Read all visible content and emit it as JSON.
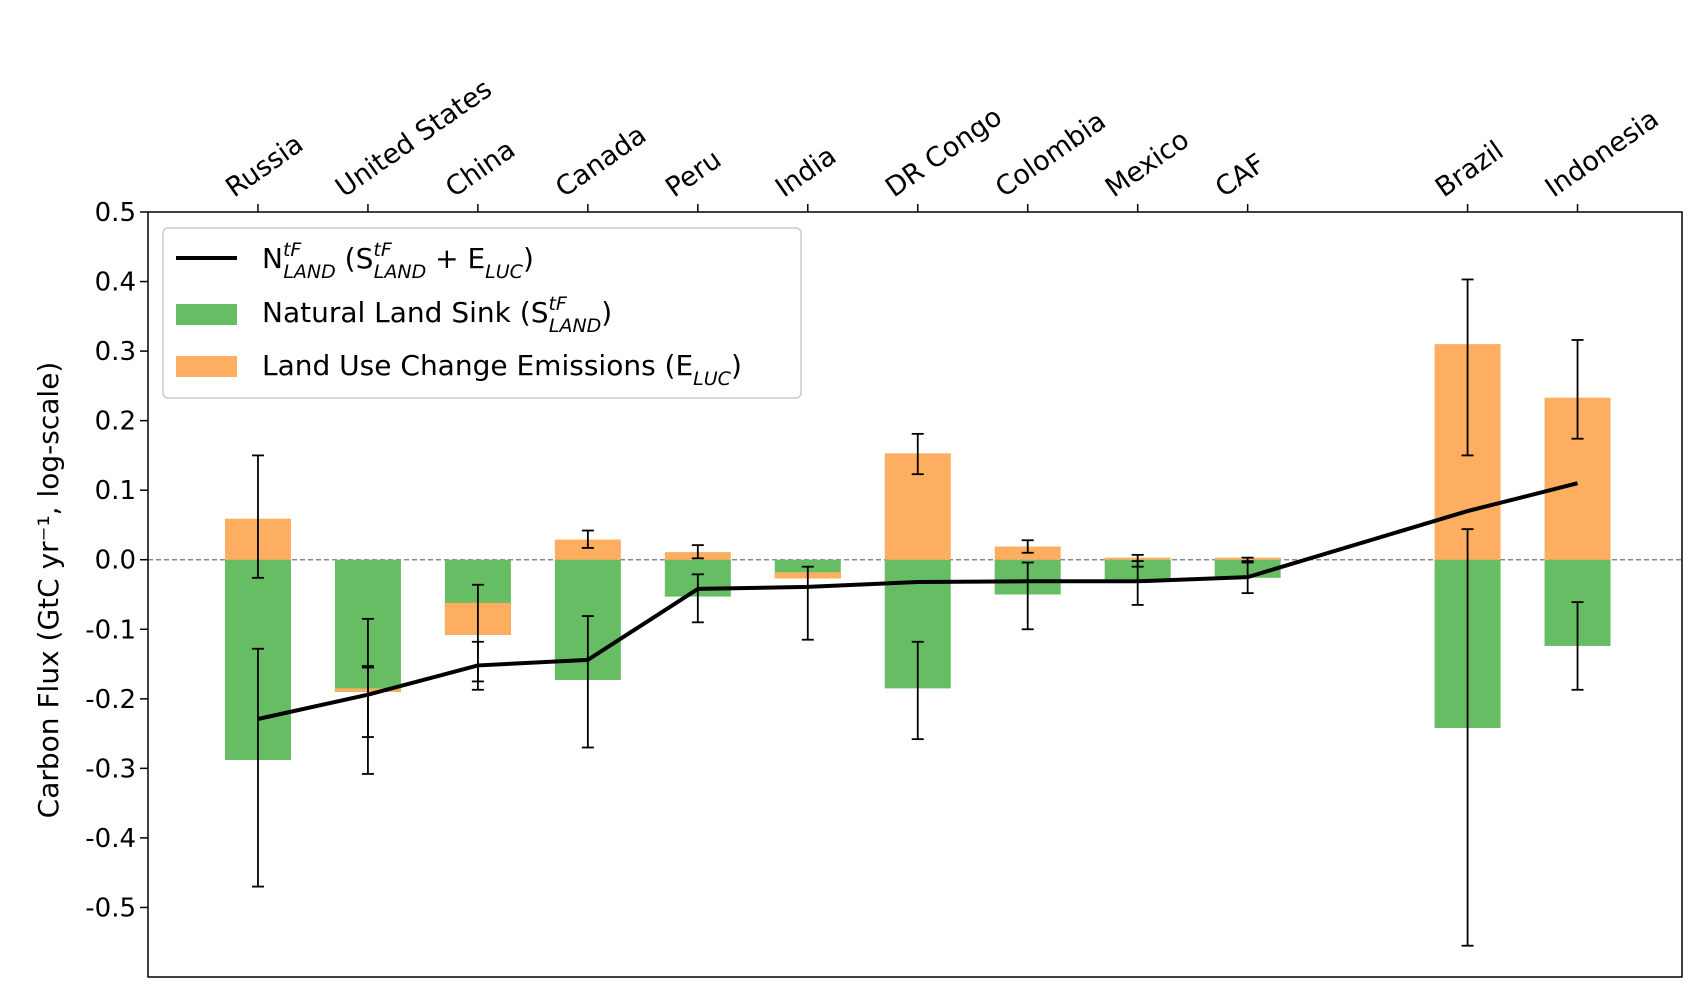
{
  "chart_data": {
    "type": "bar",
    "ylabel": "Carbon Flux (GtC yr⁻¹, log-scale)",
    "ylim": [
      -0.6,
      0.5
    ],
    "yticks": [
      "0.5",
      "0.4",
      "0.3",
      "0.2",
      "0.1",
      "0.0",
      "-0.1",
      "-0.2",
      "-0.3",
      "-0.4",
      "-0.5"
    ],
    "ytick_values": [
      0.5,
      0.4,
      0.3,
      0.2,
      0.1,
      0.0,
      -0.1,
      -0.2,
      -0.3,
      -0.4,
      -0.5
    ],
    "xaxis_position": "top",
    "legend_position": "top-left",
    "reference_line": 0.0,
    "categories": [
      "Russia",
      "United States",
      "China",
      "Canada",
      "Peru",
      "India",
      "DR Congo",
      "Colombia",
      "Mexico",
      "CAF",
      "Brazil",
      "Indonesia"
    ],
    "x": [
      1,
      2,
      3,
      4,
      5,
      6,
      7,
      8,
      9,
      10,
      12,
      13
    ],
    "series": [
      {
        "name": "Natural Land Sink (S tF LAND)",
        "kind": "bar",
        "color": "#66bd63",
        "values": [
          -0.288,
          -0.19,
          -0.108,
          -0.173,
          -0.053,
          -0.027,
          -0.185,
          -0.05,
          -0.028,
          -0.026,
          -0.242,
          -0.124
        ],
        "error_low": [
          -0.47,
          -0.308,
          -0.187,
          -0.27,
          -0.09,
          -0.115,
          -0.258,
          -0.1,
          -0.065,
          -0.048,
          -0.555,
          -0.187
        ],
        "error_high": [
          -0.128,
          -0.085,
          -0.036,
          -0.081,
          -0.021,
          -0.01,
          -0.118,
          -0.004,
          -0.002,
          -0.004,
          0.044,
          -0.061
        ]
      },
      {
        "name": "Land Use Change Emissions (E LUC)",
        "kind": "bar",
        "color": "#fdae61",
        "bottoms": [
          0.0,
          -0.19,
          -0.108,
          0.0,
          0.0,
          -0.027,
          0.0,
          0.0,
          0.0,
          0.0,
          0.0,
          0.0
        ],
        "values": [
          0.059,
          0.005,
          0.046,
          0.029,
          0.011,
          0.009,
          0.153,
          0.019,
          0.003,
          0.003,
          0.31,
          0.233
        ],
        "error_low": [
          -0.026,
          -0.153,
          -0.118,
          0.017,
          0.002,
          null,
          0.123,
          0.01,
          -0.01,
          -0.002,
          0.15,
          0.174
        ],
        "error_high": [
          0.15,
          -0.153,
          -0.175,
          0.042,
          0.021,
          null,
          0.181,
          0.028,
          0.007,
          0.003,
          0.403,
          0.316
        ]
      },
      {
        "name": "N tF LAND (S tF LAND + E LUC)",
        "kind": "line",
        "color": "#000000",
        "values": [
          -0.229,
          -0.194,
          -0.152,
          -0.144,
          -0.042,
          -0.039,
          -0.032,
          -0.031,
          -0.031,
          -0.025,
          0.07,
          0.11
        ],
        "error_low": [
          null,
          -0.255,
          null,
          null,
          null,
          null,
          null,
          null,
          null,
          null,
          null,
          null
        ],
        "error_high": [
          null,
          -0.155,
          null,
          null,
          null,
          null,
          null,
          null,
          null,
          null,
          null,
          null
        ]
      }
    ]
  },
  "legend": {
    "items": [
      {
        "key": "net",
        "base": "N",
        "sup": "tF",
        "sub": "LAND",
        "rest_open": " (S",
        "rest_sup": "tF",
        "rest_sub": "LAND",
        "rest_close": " + E",
        "rest_sub2": "LUC",
        "rest_end": ")"
      },
      {
        "key": "sink",
        "text": "Natural Land Sink (S",
        "sup": "tF",
        "sub": "LAND",
        "end": ")"
      },
      {
        "key": "luc",
        "text": "Land Use Change Emissions (E",
        "sub": "LUC",
        "end": ")"
      }
    ]
  }
}
